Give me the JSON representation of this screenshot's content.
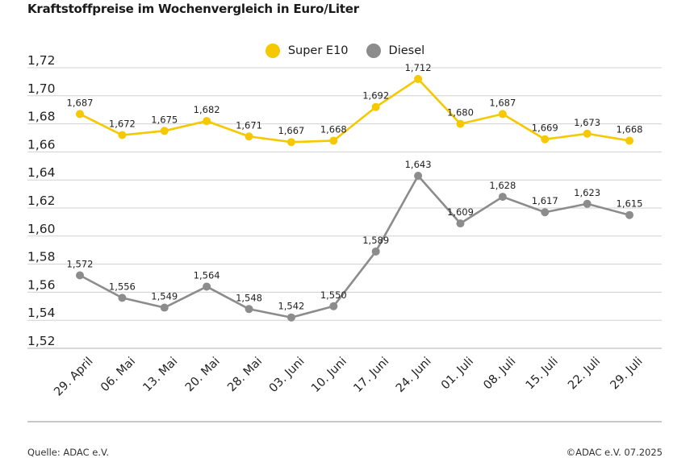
{
  "title": "Kraftstoffpreise im Wochenvergleich in Euro/Liter",
  "source": "Quelle: ADAC e.V.",
  "copyright": "©ADAC e.V. 07.2025",
  "colors": {
    "super": "#f5c800",
    "diesel": "#8c8c8c",
    "grid": "#d0d0d0",
    "axis": "#b0b0b0"
  },
  "chart_data": {
    "type": "line",
    "title": "Kraftstoffpreise im Wochenvergleich in Euro/Liter",
    "xlabel": "",
    "ylabel": "",
    "ylim": [
      1.52,
      1.72
    ],
    "yticks": [
      1.52,
      1.54,
      1.56,
      1.58,
      1.6,
      1.62,
      1.64,
      1.66,
      1.68,
      1.7,
      1.72
    ],
    "ytick_labels": [
      "1,52",
      "1,54",
      "1,56",
      "1,58",
      "1,60",
      "1,62",
      "1,64",
      "1,66",
      "1,68",
      "1,70",
      "1,72"
    ],
    "categories": [
      "29. April",
      "06. Mai",
      "13. Mai",
      "20. Mai",
      "28. Mai",
      "03. Juni",
      "10. Juni",
      "17. Juni",
      "24. Juni",
      "01. Juli",
      "08. Juli",
      "15. Juli",
      "22. Juli",
      "29. Juli"
    ],
    "legend_position": "top-center",
    "grid": true,
    "series": [
      {
        "name": "Super E10",
        "color_key": "super",
        "values": [
          1.687,
          1.672,
          1.675,
          1.682,
          1.671,
          1.667,
          1.668,
          1.692,
          1.712,
          1.68,
          1.687,
          1.669,
          1.673,
          1.668
        ],
        "labels": [
          "1,687",
          "1,672",
          "1,675",
          "1,682",
          "1,671",
          "1,667",
          "1,668",
          "1,692",
          "1,712",
          "1,680",
          "1,687",
          "1,669",
          "1,673",
          "1,668"
        ]
      },
      {
        "name": "Diesel",
        "color_key": "diesel",
        "values": [
          1.572,
          1.556,
          1.549,
          1.564,
          1.548,
          1.542,
          1.55,
          1.589,
          1.643,
          1.609,
          1.628,
          1.617,
          1.623,
          1.615
        ],
        "labels": [
          "1,572",
          "1,556",
          "1,549",
          "1,564",
          "1,548",
          "1,542",
          "1,550",
          "1,589",
          "1,643",
          "1,609",
          "1,628",
          "1,617",
          "1,623",
          "1,615"
        ]
      }
    ]
  }
}
